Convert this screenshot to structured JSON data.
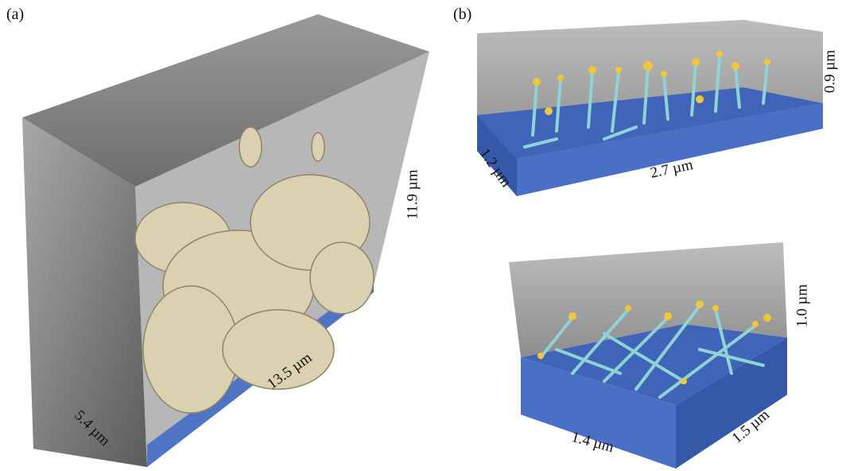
{
  "panels": [
    {
      "label": "(a)",
      "dims": [
        "5.4 µm",
        "13.5 µm",
        "11.9 µm"
      ]
    },
    {
      "label": "(b)",
      "views": [
        {
          "dims": [
            "1.2 µm",
            "2.7 µm",
            "0.9 µm"
          ]
        },
        {
          "dims": [
            "1.4 µm",
            "1.5 µm",
            "1.0 µm"
          ]
        }
      ]
    }
  ]
}
